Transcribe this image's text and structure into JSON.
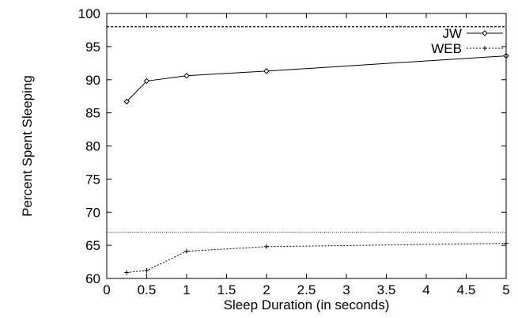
{
  "chart_data": {
    "type": "line",
    "xlabel": "Sleep Duration (in seconds)",
    "ylabel": "Percent Spent Sleeping",
    "xlim": [
      0,
      5
    ],
    "ylim": [
      60,
      100
    ],
    "x_ticks": [
      "0",
      "0.5",
      "1",
      "1.5",
      "2",
      "2.5",
      "3",
      "3.5",
      "4",
      "4.5",
      "5"
    ],
    "y_ticks": [
      "60",
      "65",
      "70",
      "75",
      "80",
      "85",
      "90",
      "95",
      "100"
    ],
    "grid": false,
    "legend_position": "top-right",
    "series": [
      {
        "name": "JW",
        "style": "solid",
        "marker": "diamond",
        "x": [
          0.25,
          0.5,
          1,
          2,
          5
        ],
        "y": [
          86.7,
          89.8,
          90.6,
          91.3,
          93.6
        ]
      },
      {
        "name": "WEB",
        "style": "dotted",
        "marker": "plus",
        "x": [
          0.25,
          0.5,
          1,
          2,
          5
        ],
        "y": [
          60.9,
          61.2,
          64.1,
          64.8,
          65.3
        ]
      }
    ],
    "reference_lines": [
      {
        "y": 98,
        "style": "dashed"
      },
      {
        "y": 67,
        "style": "dotted"
      }
    ]
  }
}
